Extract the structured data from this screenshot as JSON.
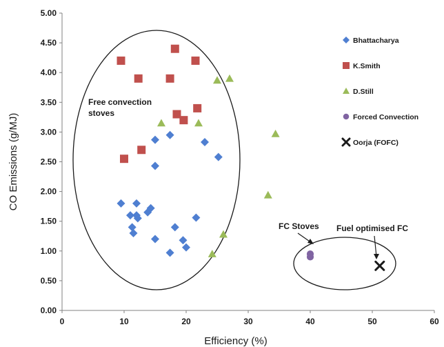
{
  "chart_data": {
    "type": "scatter",
    "title": "",
    "xlabel": "Efficiency (%)",
    "ylabel": "CO Emissions (g/MJ)",
    "xlim": [
      0,
      60
    ],
    "ylim": [
      0,
      5
    ],
    "x_ticks": [
      "0",
      "10",
      "20",
      "30",
      "40",
      "50",
      "60"
    ],
    "y_ticks": [
      "0.00",
      "0.50",
      "1.00",
      "1.50",
      "2.00",
      "2.50",
      "3.00",
      "3.50",
      "4.00",
      "4.50",
      "5.00"
    ],
    "grid": false,
    "legend_position": "right",
    "series": [
      {
        "name": "Bhattacharya",
        "marker": "diamond",
        "color": "#4f7fd1",
        "points": [
          [
            9.5,
            1.8
          ],
          [
            11.0,
            1.6
          ],
          [
            11.3,
            1.4
          ],
          [
            11.5,
            1.3
          ],
          [
            12.0,
            1.8
          ],
          [
            12.0,
            1.6
          ],
          [
            12.2,
            1.55
          ],
          [
            13.8,
            1.65
          ],
          [
            14.3,
            1.72
          ],
          [
            15.0,
            1.2
          ],
          [
            15.0,
            2.43
          ],
          [
            15.0,
            2.87
          ],
          [
            17.4,
            0.97
          ],
          [
            17.4,
            2.95
          ],
          [
            18.2,
            1.4
          ],
          [
            19.5,
            1.18
          ],
          [
            20.0,
            1.06
          ],
          [
            21.6,
            1.56
          ],
          [
            23.0,
            2.83
          ],
          [
            25.2,
            2.58
          ]
        ]
      },
      {
        "name": "K.Smith",
        "marker": "square",
        "color": "#c0504d",
        "points": [
          [
            9.5,
            4.2
          ],
          [
            10.0,
            2.55
          ],
          [
            12.3,
            3.9
          ],
          [
            12.8,
            2.7
          ],
          [
            17.4,
            3.9
          ],
          [
            18.2,
            4.4
          ],
          [
            18.5,
            3.3
          ],
          [
            19.6,
            3.2
          ],
          [
            21.5,
            4.2
          ],
          [
            21.8,
            3.4
          ]
        ]
      },
      {
        "name": "D.Still",
        "marker": "triangle",
        "color": "#9bbb59",
        "points": [
          [
            16.0,
            3.15
          ],
          [
            22.0,
            3.15
          ],
          [
            24.2,
            0.95
          ],
          [
            25.0,
            3.87
          ],
          [
            26.0,
            1.28
          ],
          [
            27.0,
            3.9
          ],
          [
            33.2,
            1.94
          ],
          [
            34.4,
            2.97
          ]
        ]
      },
      {
        "name": "Forced Convection",
        "marker": "circle",
        "color": "#8064a2",
        "points": [
          [
            40.0,
            0.9
          ],
          [
            40.0,
            0.95
          ]
        ]
      },
      {
        "name": "Oorja (FOFC)",
        "marker": "x",
        "color": "#1a1a1a",
        "points": [
          [
            51.2,
            0.75
          ]
        ]
      }
    ],
    "annotations": {
      "free_convection": "Free convection stoves",
      "fc_stoves": "FC Stoves",
      "fuel_optimised": "Fuel optimised FC"
    }
  }
}
